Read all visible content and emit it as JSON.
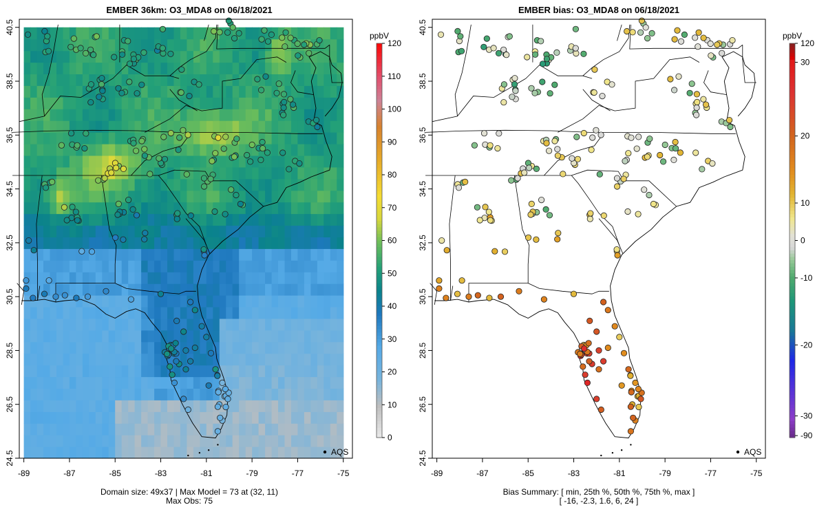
{
  "left_panel": {
    "title": "EMBER 36km: O3_MDA8 on 06/18/2021",
    "footer_line1": "Domain size: 49x37 | Max Model = 73 at (32, 11)",
    "footer_line2": "Max Obs: 75",
    "legend_label": "AQS",
    "colorbar_unit": "ppbV",
    "colorbar_ticks": [
      "0",
      "10",
      "20",
      "30",
      "40",
      "50",
      "60",
      "70",
      "80",
      "90",
      "100",
      "110",
      "120"
    ]
  },
  "right_panel": {
    "title": "EMBER bias: O3_MDA8 on 06/18/2021",
    "footer_line1": "Bias Summary: [ min, 25th %, 50th %, 75th %, max ]",
    "footer_line2": "[ -16,  -2.3,  1.6,  6,  24 ]",
    "legend_label": "AQS",
    "colorbar_unit": "ppbV",
    "colorbar_ticks": [
      "-90",
      "-30",
      "-20",
      "-10",
      "0",
      "10",
      "20",
      "30",
      "120"
    ]
  },
  "axes": {
    "x_ticks": [
      "-89",
      "-87",
      "-85",
      "-83",
      "-81",
      "-79",
      "-77",
      "-75"
    ],
    "y_ticks": [
      "24.5",
      "26.5",
      "28.5",
      "30.5",
      "32.5",
      "34.5",
      "36.5",
      "38.5",
      "40.5"
    ]
  },
  "map_data": {
    "lon_range": [
      -89.2,
      -74.6
    ],
    "lat_range": [
      24.5,
      40.8
    ],
    "model_domain": {
      "lon": [
        -89.0,
        -75.0
      ],
      "lat": [
        24.5,
        40.5
      ],
      "cols": 49,
      "rows": 37
    },
    "bias_summary": {
      "min": -16,
      "p25": -2.3,
      "p50": 1.6,
      "p75": 6,
      "max": 24
    },
    "max_model": 73,
    "max_obs": 75
  }
}
